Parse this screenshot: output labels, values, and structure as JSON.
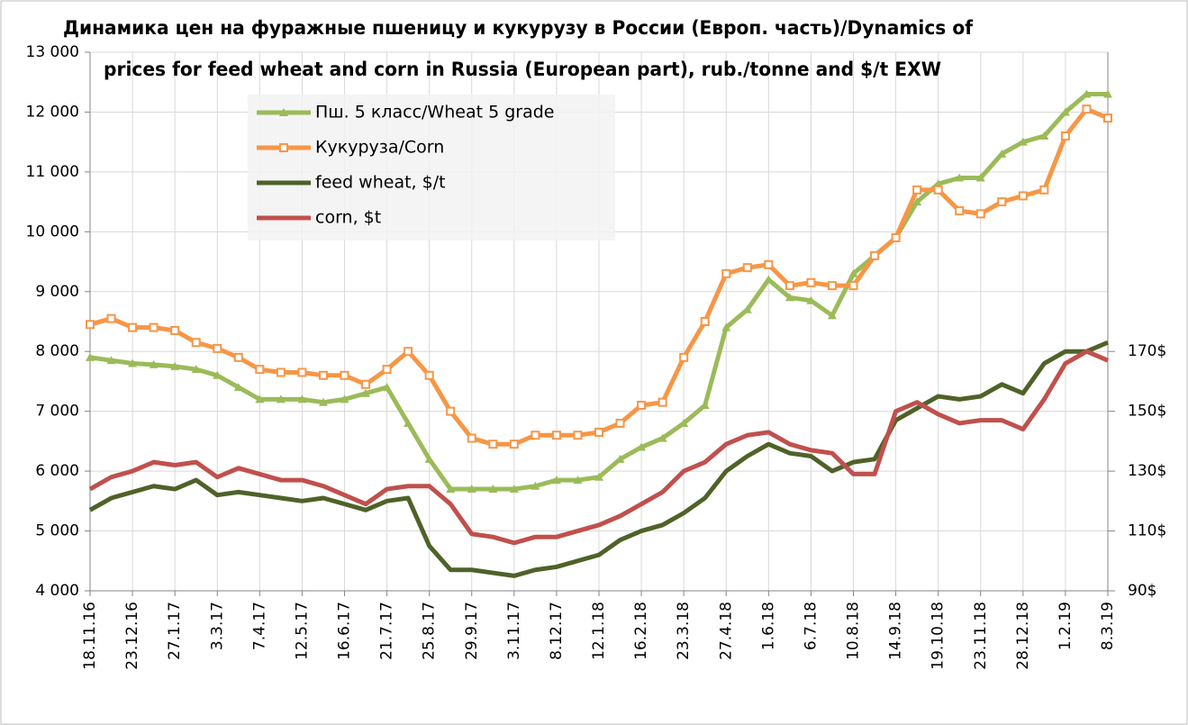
{
  "chart_data": {
    "type": "line",
    "title": [
      "Динамика цен на фуражные пшеницу и кукурузу в России (Европ. часть)/Dynamics of",
      "prices for feed wheat and corn  in Russia (European part), rub./tonne and $/t EXW"
    ],
    "categories": [
      "18.11.16",
      null,
      "23.12.16",
      null,
      "27.1.17",
      null,
      "3.3.17",
      null,
      "7.4.17",
      null,
      "12.5.17",
      null,
      "16.6.17",
      null,
      "21.7.17",
      null,
      "25.8.17",
      null,
      "29.9.17",
      null,
      "3.11.17",
      null,
      "8.12.17",
      null,
      "12.1.18",
      null,
      "16.2.18",
      null,
      "23.3.18",
      null,
      "27.4.18",
      null,
      "1.6.18",
      null,
      "6.7.18",
      null,
      "10.8.18",
      null,
      "14.9.18",
      null,
      "19.10.18",
      null,
      "23.11.18",
      null,
      "28.12.18",
      null,
      "1.2.19",
      null,
      "8.3.19"
    ],
    "series": [
      {
        "name": "Пш. 5 класс/Wheat 5 grade",
        "color": "#9bbb59",
        "marker": "triangle",
        "values": [
          7900,
          7850,
          7800,
          7780,
          7750,
          7700,
          7600,
          7400,
          7200,
          7200,
          7200,
          7150,
          7200,
          7300,
          7400,
          6800,
          6200,
          5700,
          5700,
          5700,
          5700,
          5750,
          5850,
          5850,
          5900,
          6200,
          6400,
          6550,
          6800,
          7100,
          8400,
          8700,
          9200,
          8900,
          8850,
          8600,
          9300,
          9600,
          9900,
          10500,
          10800,
          10900,
          10900,
          11300,
          11500,
          11600,
          12000,
          12300,
          12300
        ]
      },
      {
        "name": "Кукуруза/Corn",
        "color": "#f79646",
        "marker": "square",
        "values": [
          8450,
          8550,
          8400,
          8400,
          8350,
          8150,
          8050,
          7900,
          7700,
          7650,
          7650,
          7600,
          7600,
          7450,
          7700,
          8000,
          7600,
          7000,
          6550,
          6450,
          6450,
          6600,
          6600,
          6600,
          6650,
          6800,
          7100,
          7150,
          7900,
          8500,
          9300,
          9400,
          9450,
          9100,
          9150,
          9100,
          9100,
          9600,
          9900,
          10700,
          10700,
          10350,
          10300,
          10500,
          10600,
          10700,
          11600,
          12050,
          11900
        ]
      },
      {
        "name": "feed wheat, $/t",
        "color": "#4f6228",
        "axis": "y2",
        "values": [
          117,
          121,
          123,
          125,
          124,
          127,
          122,
          123,
          122,
          121,
          120,
          121,
          119,
          117,
          120,
          121,
          105,
          97,
          97,
          96,
          95,
          97,
          98,
          100,
          102,
          107,
          110,
          112,
          116,
          121,
          130,
          135,
          139,
          136,
          135,
          130,
          133,
          134,
          147,
          151,
          155,
          154,
          155,
          159,
          156,
          166,
          170,
          170,
          173
        ]
      },
      {
        "name": "corn, $t",
        "color": "#c0504d",
        "axis": "y2",
        "values": [
          124,
          128,
          130,
          133,
          132,
          133,
          128,
          131,
          129,
          127,
          127,
          125,
          122,
          119,
          124,
          125,
          125,
          119,
          109,
          108,
          106,
          108,
          108,
          110,
          112,
          115,
          119,
          123,
          130,
          133,
          139,
          142,
          143,
          139,
          137,
          136,
          129,
          129,
          150,
          153,
          149,
          146,
          147,
          147,
          144,
          154,
          166,
          170,
          167
        ]
      }
    ],
    "ylim": [
      4000,
      13000
    ],
    "yticks": [
      {
        "value": 4000,
        "label": "4 000"
      },
      {
        "value": 5000,
        "label": "5 000"
      },
      {
        "value": 6000,
        "label": "6 000"
      },
      {
        "value": 7000,
        "label": "7 000"
      },
      {
        "value": 8000,
        "label": "8 000"
      },
      {
        "value": 9000,
        "label": "9 000"
      },
      {
        "value": 10000,
        "label": "10 000"
      },
      {
        "value": 11000,
        "label": "11 000"
      },
      {
        "value": 12000,
        "label": "12 000"
      },
      {
        "value": 13000,
        "label": "13 000"
      }
    ],
    "y2lim": [
      90,
      270
    ],
    "y2ticks": [
      {
        "value": 90,
        "label": "90$"
      },
      {
        "value": 110,
        "label": "110$"
      },
      {
        "value": 130,
        "label": "130$"
      },
      {
        "value": 150,
        "label": "150$"
      },
      {
        "value": 170,
        "label": "170$"
      }
    ],
    "grid": true
  }
}
